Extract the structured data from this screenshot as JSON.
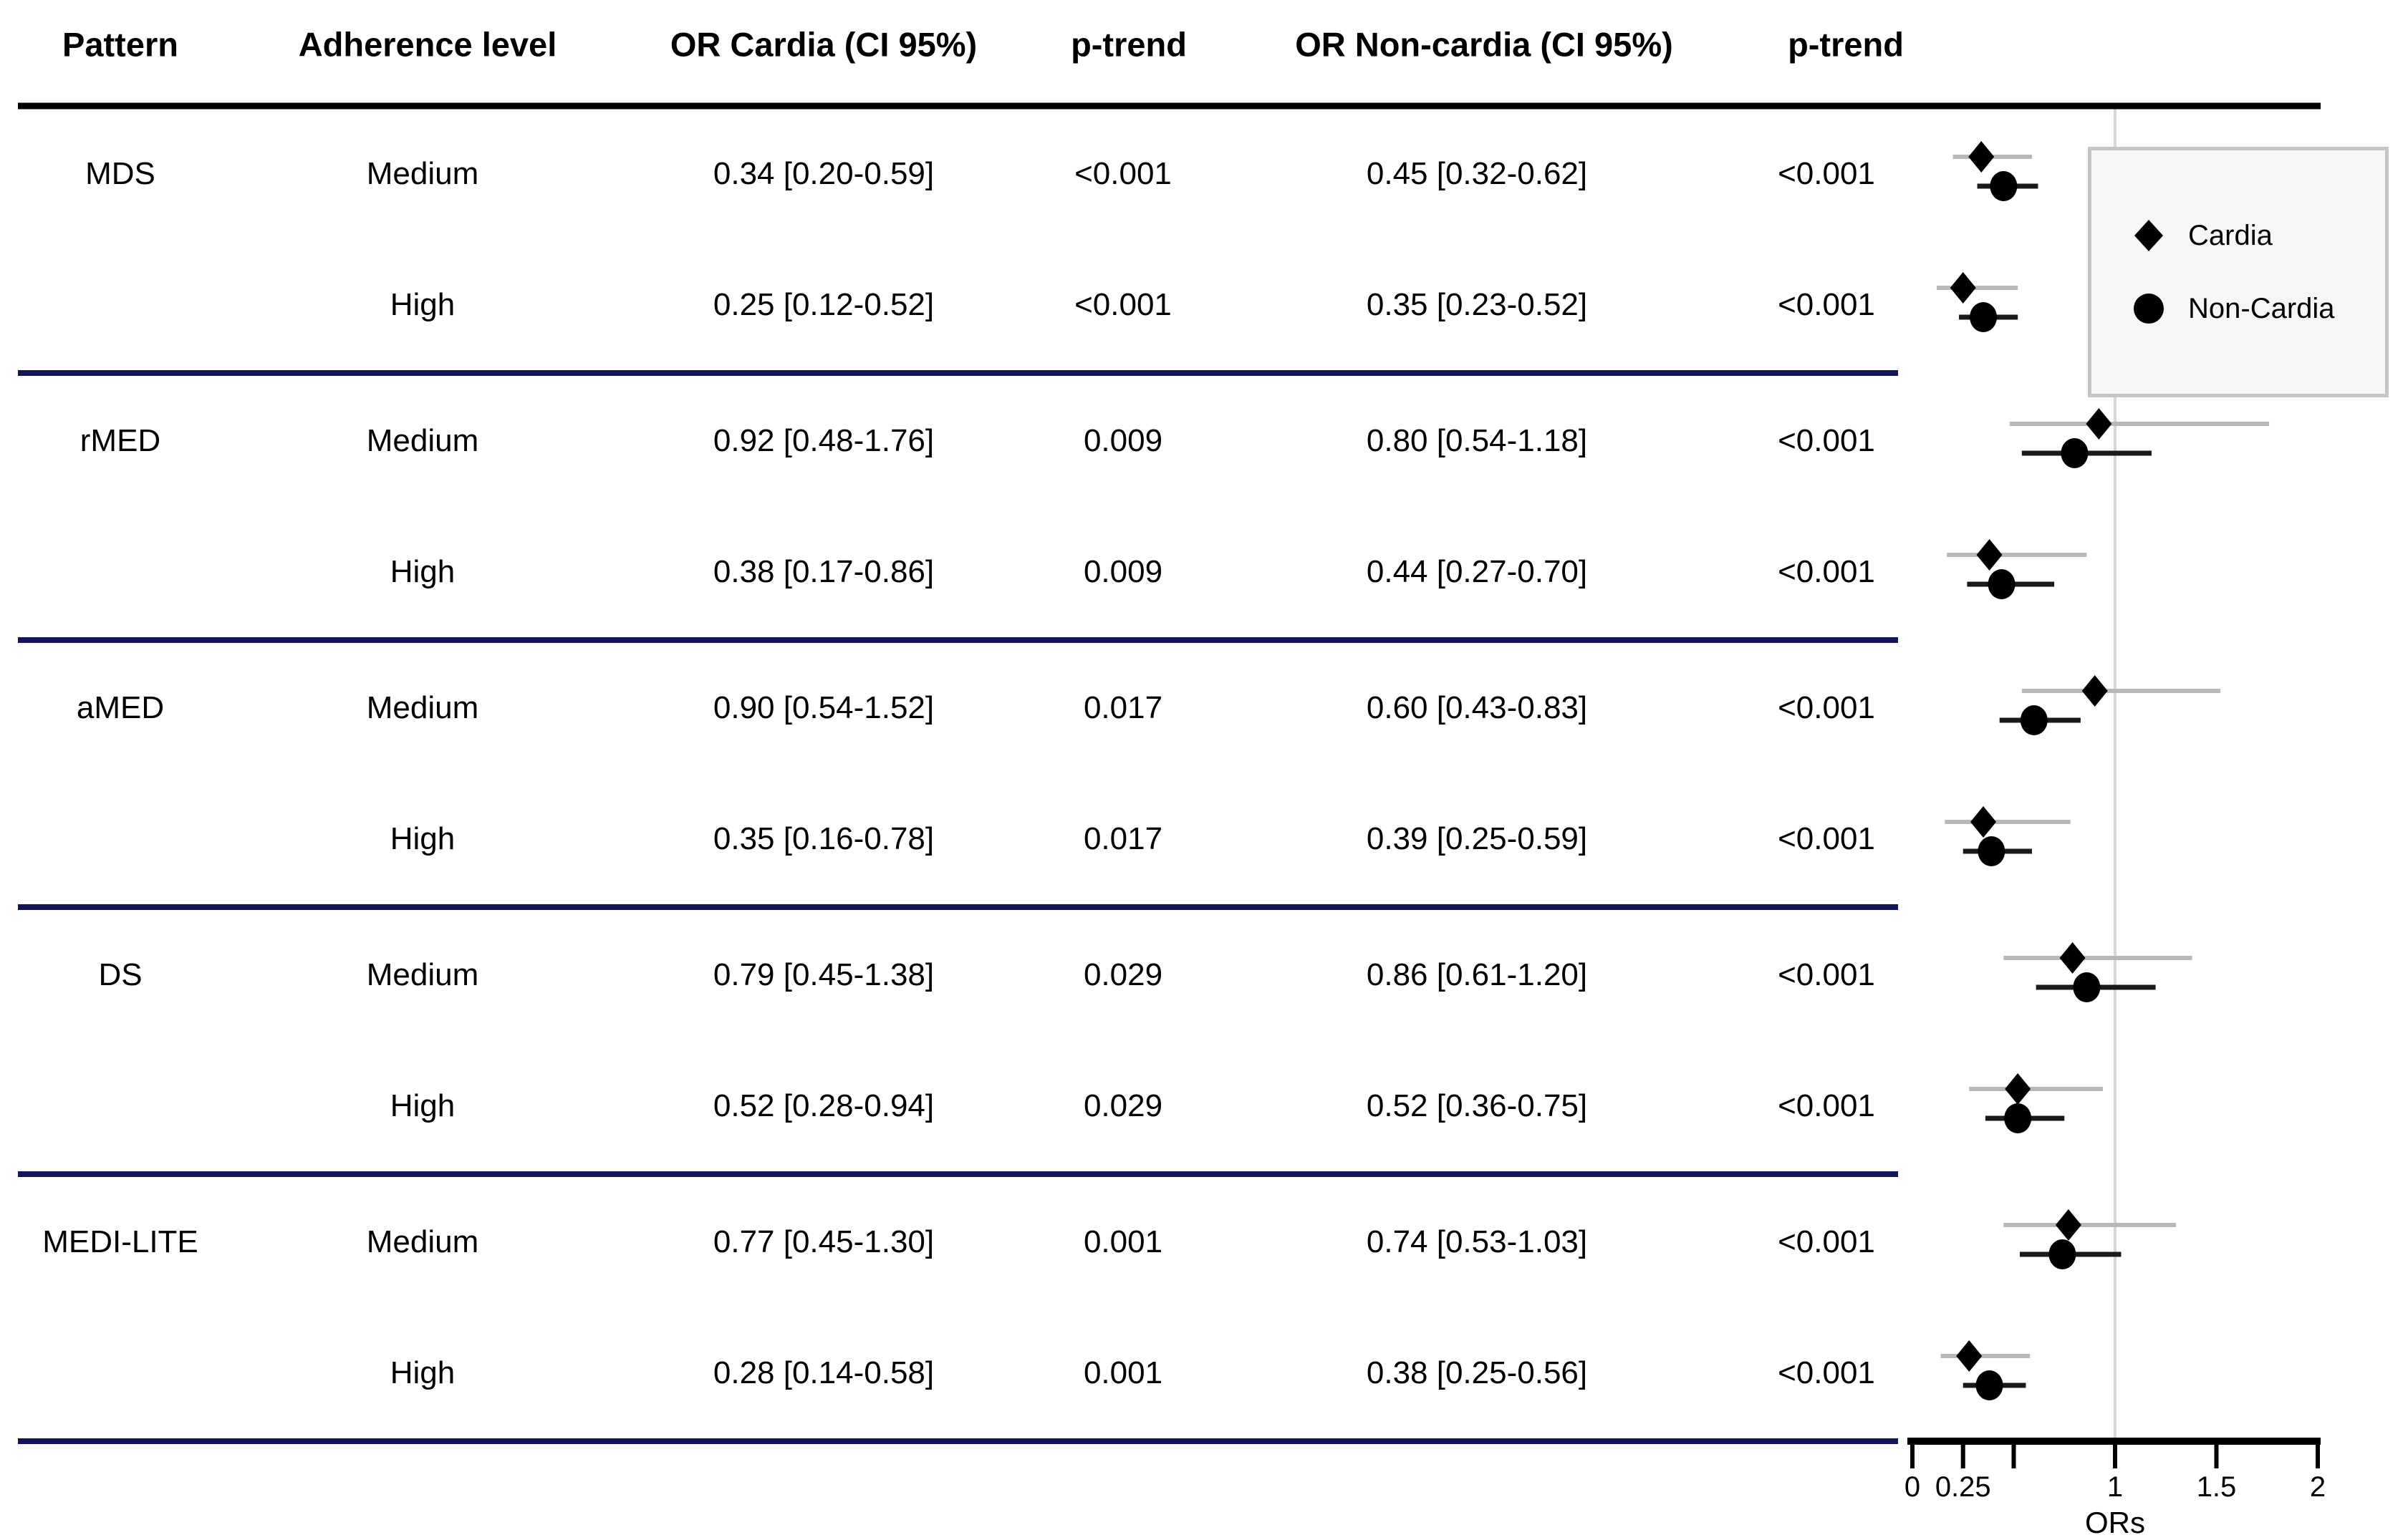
{
  "figure": {
    "headers": {
      "pattern": "Pattern",
      "adherence": "Adherence level",
      "or_cardia": "OR Cardia (CI 95%)",
      "p_trend_cardia": "p-trend",
      "or_noncardia": "OR Non-cardia (CI 95%)",
      "p_trend_noncardia": "p-trend"
    },
    "legend": {
      "cardia_label": "Cardia",
      "noncardia_label": "Non-Cardia"
    }
  },
  "colors": {
    "text": "#000000",
    "header_rule": "#000000",
    "group_divider": "#14145a",
    "cardia_ci_line": "#b8b8b8",
    "noncardia_ci_line": "#1a1a1a",
    "marker": "#000000",
    "reference_line": "#d6d6d6",
    "axis": "#000000",
    "legend_bg": "#f6f6f6",
    "legend_border": "#c5c5c5"
  },
  "chart_data": {
    "type": "scatter",
    "variant": "forest-plot",
    "title": "",
    "xlabel": "ORs",
    "ylabel": "",
    "xlim": [
      0,
      2.05
    ],
    "x_ticks": [
      0,
      0.25,
      0.5,
      1,
      1.5,
      2
    ],
    "x_tick_labels": [
      "0",
      "0.25",
      "",
      "1",
      "1.5",
      "2"
    ],
    "reference_line_x": 1,
    "grid": false,
    "legend_position": "top-right",
    "series": [
      {
        "name": "Cardia",
        "marker": "diamond"
      },
      {
        "name": "Non-Cardia",
        "marker": "circle"
      }
    ],
    "groups": [
      {
        "pattern": "MDS",
        "rows": [
          {
            "level": "Medium",
            "cardia": {
              "or": 0.34,
              "ci": [
                0.2,
                0.59
              ],
              "label": "0.34 [0.20-0.59]",
              "p_trend": "<0.001"
            },
            "noncardia": {
              "or": 0.45,
              "ci": [
                0.32,
                0.62
              ],
              "label": "0.45 [0.32-0.62]",
              "p_trend": "<0.001"
            }
          },
          {
            "level": "High",
            "cardia": {
              "or": 0.25,
              "ci": [
                0.12,
                0.52
              ],
              "label": "0.25 [0.12-0.52]",
              "p_trend": "<0.001"
            },
            "noncardia": {
              "or": 0.35,
              "ci": [
                0.23,
                0.52
              ],
              "label": "0.35 [0.23-0.52]",
              "p_trend": "<0.001"
            }
          }
        ]
      },
      {
        "pattern": "rMED",
        "rows": [
          {
            "level": "Medium",
            "cardia": {
              "or": 0.92,
              "ci": [
                0.48,
                1.76
              ],
              "label": "0.92 [0.48-1.76]",
              "p_trend": "0.009"
            },
            "noncardia": {
              "or": 0.8,
              "ci": [
                0.54,
                1.18
              ],
              "label": "0.80 [0.54-1.18]",
              "p_trend": "<0.001"
            }
          },
          {
            "level": "High",
            "cardia": {
              "or": 0.38,
              "ci": [
                0.17,
                0.86
              ],
              "label": "0.38 [0.17-0.86]",
              "p_trend": "0.009"
            },
            "noncardia": {
              "or": 0.44,
              "ci": [
                0.27,
                0.7
              ],
              "label": "0.44 [0.27-0.70]",
              "p_trend": "<0.001"
            }
          }
        ]
      },
      {
        "pattern": "aMED",
        "rows": [
          {
            "level": "Medium",
            "cardia": {
              "or": 0.9,
              "ci": [
                0.54,
                1.52
              ],
              "label": "0.90 [0.54-1.52]",
              "p_trend": "0.017"
            },
            "noncardia": {
              "or": 0.6,
              "ci": [
                0.43,
                0.83
              ],
              "label": "0.60 [0.43-0.83]",
              "p_trend": "<0.001"
            }
          },
          {
            "level": "High",
            "cardia": {
              "or": 0.35,
              "ci": [
                0.16,
                0.78
              ],
              "label": "0.35 [0.16-0.78]",
              "p_trend": "0.017"
            },
            "noncardia": {
              "or": 0.39,
              "ci": [
                0.25,
                0.59
              ],
              "label": "0.39 [0.25-0.59]",
              "p_trend": "<0.001"
            }
          }
        ]
      },
      {
        "pattern": "DS",
        "rows": [
          {
            "level": "Medium",
            "cardia": {
              "or": 0.79,
              "ci": [
                0.45,
                1.38
              ],
              "label": "0.79 [0.45-1.38]",
              "p_trend": "0.029"
            },
            "noncardia": {
              "or": 0.86,
              "ci": [
                0.61,
                1.2
              ],
              "label": "0.86 [0.61-1.20]",
              "p_trend": "<0.001"
            }
          },
          {
            "level": "High",
            "cardia": {
              "or": 0.52,
              "ci": [
                0.28,
                0.94
              ],
              "label": "0.52 [0.28-0.94]",
              "p_trend": "0.029"
            },
            "noncardia": {
              "or": 0.52,
              "ci": [
                0.36,
                0.75
              ],
              "label": "0.52 [0.36-0.75]",
              "p_trend": "<0.001"
            }
          }
        ]
      },
      {
        "pattern": "MEDI-LITE",
        "rows": [
          {
            "level": "Medium",
            "cardia": {
              "or": 0.77,
              "ci": [
                0.45,
                1.3
              ],
              "label": "0.77 [0.45-1.30]",
              "p_trend": "0.001"
            },
            "noncardia": {
              "or": 0.74,
              "ci": [
                0.53,
                1.03
              ],
              "label": "0.74 [0.53-1.03]",
              "p_trend": "<0.001"
            }
          },
          {
            "level": "High",
            "cardia": {
              "or": 0.28,
              "ci": [
                0.14,
                0.58
              ],
              "label": "0.28 [0.14-0.58]",
              "p_trend": "0.001"
            },
            "noncardia": {
              "or": 0.38,
              "ci": [
                0.25,
                0.56
              ],
              "label": "0.38 [0.25-0.56]",
              "p_trend": "<0.001"
            }
          }
        ]
      }
    ]
  }
}
